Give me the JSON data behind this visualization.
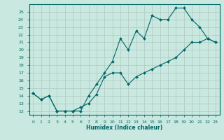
{
  "xlabel": "Humidex (Indice chaleur)",
  "xlim": [
    -0.5,
    23.5
  ],
  "ylim": [
    11.5,
    26.0
  ],
  "background_color": "#c8e8e0",
  "grid_color": "#b0c8c0",
  "line_color": "#006666",
  "line1_x": [
    0,
    1,
    2,
    3,
    4,
    5,
    6,
    7,
    8,
    9,
    10,
    11,
    12,
    13,
    14,
    15,
    16,
    17,
    18,
    19,
    20,
    21,
    22,
    23
  ],
  "line1_y": [
    14.3,
    13.5,
    14.0,
    12.0,
    12.0,
    12.0,
    12.0,
    14.0,
    15.5,
    17.0,
    18.5,
    21.5,
    20.0,
    22.5,
    21.5,
    24.5,
    24.0,
    24.0,
    25.5,
    25.5,
    24.0,
    23.0,
    21.5,
    21.0
  ],
  "line2_x": [
    0,
    1,
    2,
    3,
    4,
    5,
    6,
    7,
    8,
    9,
    10,
    11,
    12,
    13,
    14,
    15,
    16,
    17,
    18,
    19,
    20,
    21,
    22,
    23
  ],
  "line2_y": [
    14.3,
    13.5,
    14.0,
    12.0,
    12.0,
    12.0,
    12.5,
    13.0,
    14.2,
    16.5,
    17.0,
    17.0,
    15.5,
    16.5,
    17.0,
    17.5,
    18.0,
    18.5,
    19.0,
    20.0,
    21.0,
    21.0,
    21.5,
    21.0
  ],
  "yticks": [
    12,
    13,
    14,
    15,
    16,
    17,
    18,
    19,
    20,
    21,
    22,
    23,
    24,
    25
  ],
  "xticks": [
    0,
    1,
    2,
    3,
    4,
    5,
    6,
    7,
    8,
    9,
    10,
    11,
    12,
    13,
    14,
    15,
    16,
    17,
    18,
    19,
    20,
    21,
    22,
    23
  ]
}
